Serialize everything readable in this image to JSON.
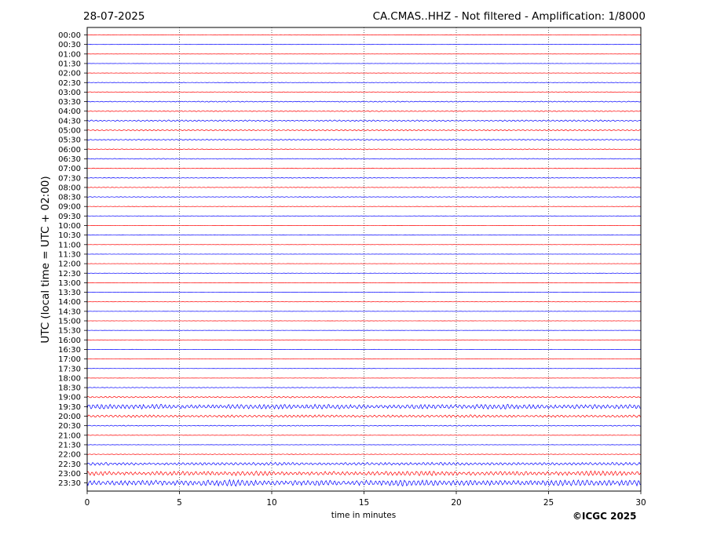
{
  "header": {
    "date": "28-07-2025",
    "station_title": "CA.CMAS..HHZ - Not filtered - Amplification: 1/8000"
  },
  "footer": {
    "copyright": "©ICGC 2025"
  },
  "chart_data": {
    "type": "line",
    "title": "CA.CMAS..HHZ - Not filtered - Amplification: 1/8000",
    "xlabel": "time in minutes",
    "ylabel": "UTC (local time = UTC + 02:00)",
    "xlim": [
      0,
      30
    ],
    "x_ticks": [
      "0",
      "5",
      "10",
      "15",
      "20",
      "25",
      "30"
    ],
    "grid": "vertical dotted lines at 5-minute intervals",
    "trace_colors": [
      "#ff0000",
      "#0000ff"
    ],
    "rows": [
      "00:00",
      "00:30",
      "01:00",
      "01:30",
      "02:00",
      "02:30",
      "03:00",
      "03:30",
      "04:00",
      "04:30",
      "05:00",
      "05:30",
      "06:00",
      "06:30",
      "07:00",
      "07:30",
      "08:00",
      "08:30",
      "09:00",
      "09:30",
      "10:00",
      "10:30",
      "11:00",
      "11:30",
      "12:00",
      "12:30",
      "13:00",
      "13:30",
      "14:00",
      "14:30",
      "15:00",
      "15:30",
      "16:00",
      "16:30",
      "17:00",
      "17:30",
      "18:00",
      "18:30",
      "19:00",
      "19:30",
      "20:00",
      "20:30",
      "21:00",
      "21:30",
      "22:00",
      "22:30",
      "23:00",
      "23:30"
    ],
    "activity_levels": [
      0.25,
      0.1,
      0.1,
      0.12,
      0.15,
      0.3,
      0.4,
      0.55,
      0.55,
      0.8,
      0.75,
      0.6,
      0.45,
      0.45,
      0.35,
      0.35,
      0.3,
      0.3,
      0.2,
      0.25,
      0.15,
      0.15,
      0.12,
      0.12,
      0.12,
      0.15,
      0.12,
      0.12,
      0.15,
      0.12,
      0.12,
      0.12,
      0.12,
      0.15,
      0.12,
      0.12,
      0.12,
      0.3,
      0.8,
      2.6,
      1.4,
      0.5,
      0.2,
      0.2,
      0.3,
      1.6,
      2.4,
      3.2
    ]
  }
}
